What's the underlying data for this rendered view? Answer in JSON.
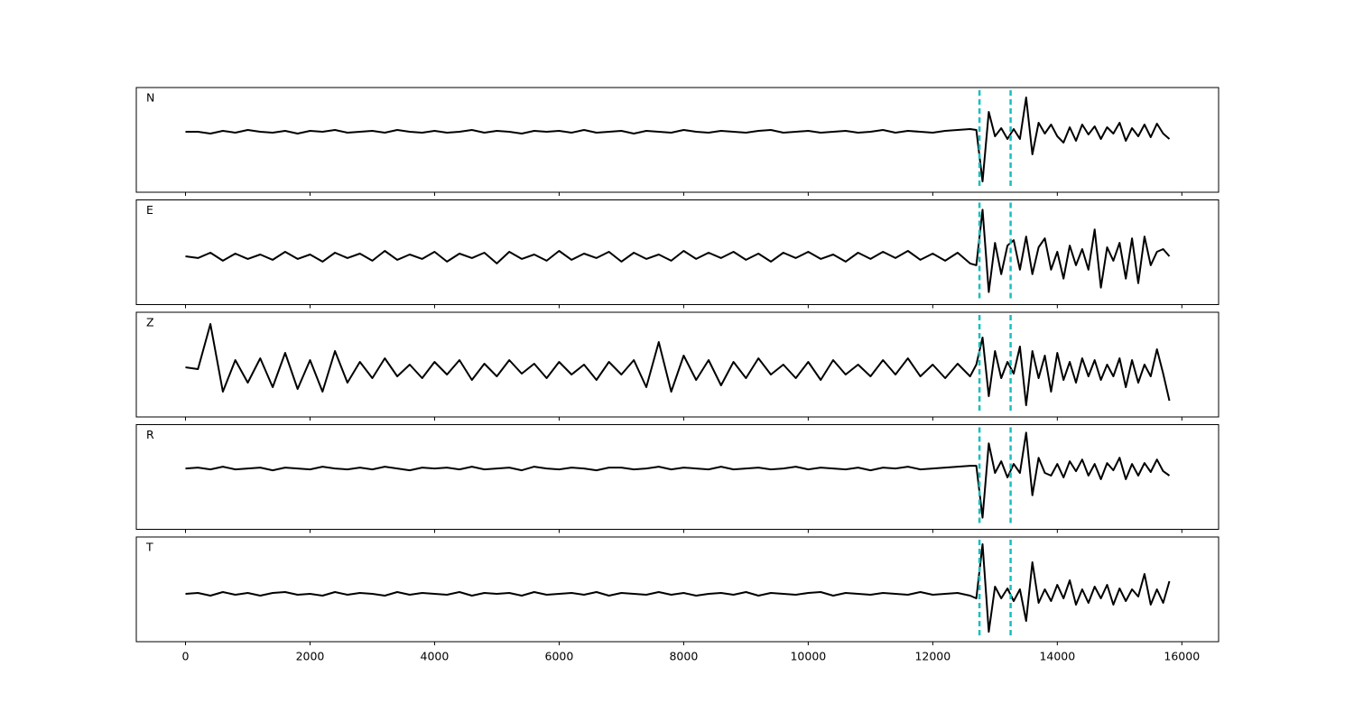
{
  "chart_data": {
    "type": "line",
    "x": [
      0,
      200,
      400,
      600,
      800,
      1000,
      1200,
      1400,
      1600,
      1800,
      2000,
      2200,
      2400,
      2600,
      2800,
      3000,
      3200,
      3400,
      3600,
      3800,
      4000,
      4200,
      4400,
      4600,
      4800,
      5000,
      5200,
      5400,
      5600,
      5800,
      6000,
      6200,
      6400,
      6600,
      6800,
      7000,
      7200,
      7400,
      7600,
      7800,
      8000,
      8200,
      8400,
      8600,
      8800,
      9000,
      9200,
      9400,
      9600,
      9800,
      10000,
      10200,
      10400,
      10600,
      10800,
      11000,
      11200,
      11400,
      11600,
      11800,
      12000,
      12200,
      12400,
      12600,
      12700,
      12800,
      12900,
      13000,
      13100,
      13200,
      13300,
      13400,
      13500,
      13600,
      13700,
      13800,
      13900,
      14000,
      14100,
      14200,
      14300,
      14400,
      14500,
      14600,
      14700,
      14800,
      14900,
      15000,
      15100,
      15200,
      15300,
      15400,
      15500,
      15600,
      15700,
      15800
    ],
    "xlim": [
      -790,
      16590
    ],
    "xticks": [
      0,
      2000,
      4000,
      6000,
      8000,
      10000,
      12000,
      14000,
      16000
    ],
    "vlines": {
      "values": [
        12750,
        13250
      ],
      "color": "#17bfbf"
    },
    "series": [
      {
        "name": "N",
        "color": "#000000",
        "ylim": [
          -67,
          49
        ],
        "values": [
          0,
          0,
          -2,
          1,
          -1,
          2,
          0,
          -1,
          1,
          -2,
          1,
          0,
          2,
          -1,
          0,
          1,
          -1,
          2,
          0,
          -1,
          1,
          -1,
          0,
          2,
          -1,
          1,
          0,
          -2,
          1,
          0,
          1,
          -1,
          2,
          -1,
          0,
          1,
          -2,
          1,
          0,
          -1,
          2,
          0,
          -1,
          1,
          0,
          -1,
          1,
          2,
          -1,
          0,
          1,
          -1,
          0,
          1,
          -1,
          0,
          2,
          -1,
          1,
          0,
          -1,
          1,
          2,
          3,
          2,
          -55,
          22,
          -5,
          4,
          -8,
          3,
          -8,
          38,
          -25,
          10,
          -2,
          8,
          -5,
          -12,
          5,
          -10,
          8,
          -3,
          6,
          -8,
          5,
          -2,
          10,
          -10,
          4,
          -5,
          8,
          -6,
          9,
          -2,
          -8
        ]
      },
      {
        "name": "E",
        "color": "#000000",
        "ylim": [
          -54,
          63
        ],
        "values": [
          0,
          -2,
          4,
          -5,
          3,
          -3,
          2,
          -4,
          5,
          -3,
          2,
          -6,
          4,
          -2,
          3,
          -5,
          6,
          -4,
          2,
          -3,
          5,
          -6,
          3,
          -2,
          4,
          -8,
          5,
          -3,
          2,
          -5,
          6,
          -4,
          3,
          -2,
          5,
          -6,
          4,
          -3,
          2,
          -5,
          6,
          -3,
          4,
          -2,
          5,
          -4,
          3,
          -6,
          4,
          -2,
          5,
          -3,
          2,
          -6,
          4,
          -3,
          5,
          -2,
          6,
          -4,
          3,
          -5,
          4,
          -8,
          -10,
          52,
          -40,
          15,
          -20,
          12,
          18,
          -15,
          22,
          -20,
          10,
          20,
          -15,
          5,
          -25,
          12,
          -10,
          8,
          -15,
          30,
          -35,
          10,
          -5,
          15,
          -25,
          20,
          -30,
          22,
          -10,
          5,
          8,
          0
        ]
      },
      {
        "name": "Z",
        "color": "#000000",
        "ylim": [
          -53,
          63
        ],
        "values": [
          2,
          0,
          50,
          -25,
          10,
          -15,
          12,
          -20,
          18,
          -22,
          10,
          -25,
          20,
          -15,
          8,
          -10,
          12,
          -8,
          5,
          -10,
          8,
          -6,
          10,
          -12,
          6,
          -8,
          10,
          -5,
          6,
          -10,
          8,
          -6,
          5,
          -12,
          8,
          -6,
          10,
          -20,
          30,
          -25,
          15,
          -12,
          10,
          -18,
          8,
          -10,
          12,
          -6,
          5,
          -10,
          8,
          -12,
          10,
          -6,
          5,
          -8,
          10,
          -6,
          12,
          -8,
          5,
          -10,
          6,
          -8,
          5,
          35,
          -30,
          20,
          -10,
          8,
          -5,
          25,
          -40,
          20,
          -10,
          15,
          -25,
          18,
          -12,
          8,
          -15,
          12,
          -8,
          10,
          -12,
          5,
          -8,
          12,
          -20,
          10,
          -15,
          5,
          -8,
          22,
          -5,
          -35
        ]
      },
      {
        "name": "R",
        "color": "#000000",
        "ylim": [
          -68,
          49
        ],
        "values": [
          0,
          1,
          -1,
          2,
          -1,
          0,
          1,
          -2,
          1,
          0,
          -1,
          2,
          0,
          -1,
          1,
          -1,
          2,
          0,
          -2,
          1,
          0,
          1,
          -1,
          2,
          -1,
          0,
          1,
          -2,
          2,
          0,
          -1,
          1,
          0,
          -2,
          1,
          1,
          -1,
          0,
          2,
          -1,
          1,
          0,
          -1,
          2,
          -1,
          0,
          1,
          -1,
          0,
          2,
          -1,
          1,
          0,
          -1,
          1,
          -2,
          1,
          0,
          2,
          -1,
          0,
          1,
          2,
          3,
          3,
          -55,
          28,
          -5,
          8,
          -10,
          5,
          -5,
          40,
          -30,
          12,
          -5,
          -8,
          5,
          -10,
          8,
          -3,
          10,
          -8,
          5,
          -12,
          6,
          -2,
          12,
          -12,
          5,
          -8,
          6,
          -4,
          10,
          -3,
          -8
        ]
      },
      {
        "name": "T",
        "color": "#000000",
        "ylim": [
          -53,
          63
        ],
        "values": [
          0,
          1,
          -2,
          2,
          -1,
          1,
          -2,
          1,
          2,
          -1,
          0,
          -2,
          2,
          -1,
          1,
          0,
          -2,
          2,
          -1,
          1,
          0,
          -1,
          2,
          -2,
          1,
          0,
          1,
          -2,
          2,
          -1,
          0,
          1,
          -1,
          2,
          -2,
          1,
          0,
          -1,
          2,
          -1,
          1,
          -2,
          0,
          1,
          -1,
          2,
          -2,
          1,
          0,
          -1,
          1,
          2,
          -2,
          1,
          0,
          -1,
          1,
          0,
          -1,
          2,
          -1,
          0,
          1,
          -2,
          -5,
          55,
          -42,
          8,
          -5,
          6,
          -8,
          5,
          -30,
          35,
          -10,
          5,
          -8,
          10,
          -5,
          15,
          -12,
          5,
          -10,
          8,
          -5,
          10,
          -12,
          6,
          -8,
          5,
          -3,
          22,
          -12,
          5,
          -10,
          14
        ]
      }
    ]
  }
}
